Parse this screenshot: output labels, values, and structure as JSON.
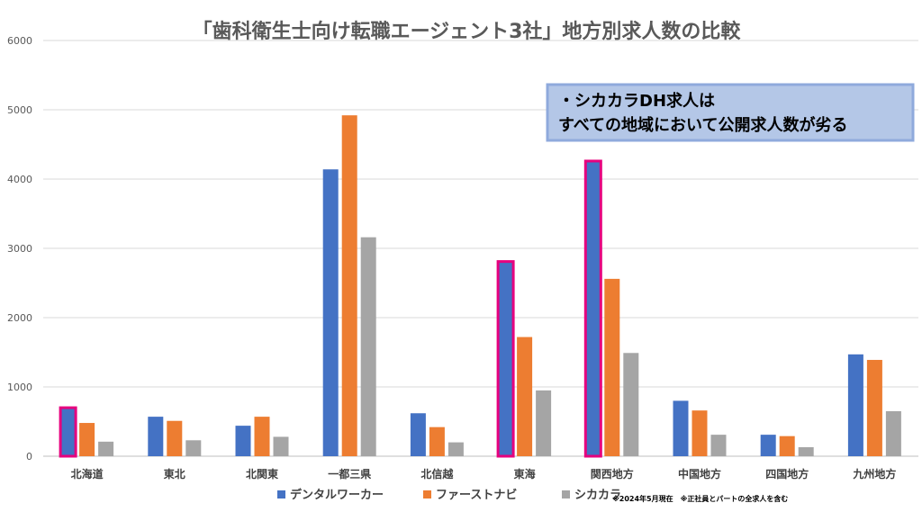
{
  "chart_data": {
    "type": "bar",
    "title": "「歯科衛生士向け転職エージェント3社」地方別求人数の比較",
    "categories": [
      "北海道",
      "東北",
      "北関東",
      "一都三県",
      "北信越",
      "東海",
      "関西地方",
      "中国地方",
      "四国地方",
      "九州地方"
    ],
    "series": [
      {
        "name": "デンタルワーカー",
        "color": "#4472C4",
        "values": [
          700,
          570,
          440,
          4140,
          620,
          2810,
          4260,
          800,
          310,
          1470
        ]
      },
      {
        "name": "ファーストナビ",
        "color": "#ED7D31",
        "values": [
          480,
          510,
          570,
          4920,
          420,
          1720,
          2560,
          660,
          290,
          1390
        ]
      },
      {
        "name": "シカカラ",
        "color": "#A5A5A5",
        "values": [
          210,
          230,
          280,
          3160,
          200,
          950,
          1490,
          310,
          130,
          650
        ]
      }
    ],
    "ylim": [
      0,
      6000
    ],
    "yticks": [
      0,
      1000,
      2000,
      3000,
      4000,
      5000,
      6000
    ],
    "grid": true,
    "legend_position": "bottom",
    "highlighted_bars": [
      {
        "series": "デンタルワーカー",
        "category": "北海道"
      },
      {
        "series": "デンタルワーカー",
        "category": "東海"
      },
      {
        "series": "デンタルワーカー",
        "category": "関西地方"
      }
    ],
    "highlight_color": "#E6007E",
    "annotation": {
      "line1": "・シカカラDH求人は",
      "line2": "すべての地域において公開求人数が劣る",
      "background": "#B4C7E7",
      "border": "#8FAADC"
    },
    "footnote": "※2024年5月現在　※正社員とパートの全求人を含む"
  }
}
